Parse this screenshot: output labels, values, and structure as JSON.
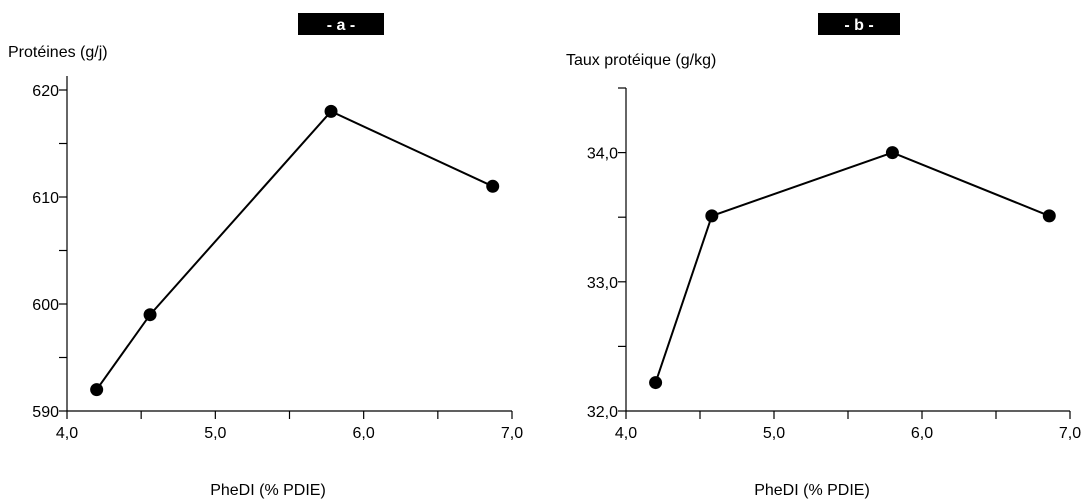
{
  "chart_data": [
    {
      "type": "line",
      "panel_label": "- a -",
      "ylabel": "Protéines (g/j)",
      "xlabel": "PheDI (% PDIE)",
      "xlim": [
        4.0,
        7.0
      ],
      "ylim": [
        590,
        620
      ],
      "x_ticks": [
        4.0,
        5.0,
        6.0,
        7.0
      ],
      "x_tick_labels": [
        "4,0",
        "5,0",
        "6,0",
        "7,0"
      ],
      "y_ticks": [
        590,
        600,
        610,
        620
      ],
      "y_tick_labels": [
        "590",
        "600",
        "610",
        "620"
      ],
      "y_minor_ticks": [
        595,
        605,
        615
      ],
      "grid": false,
      "x": [
        4.2,
        4.56,
        5.78,
        6.87
      ],
      "values": [
        592,
        599,
        618,
        611
      ],
      "line_color": "#000000",
      "marker_color": "#000000"
    },
    {
      "type": "line",
      "panel_label": "- b -",
      "ylabel": "Taux protéique  (g/kg)",
      "xlabel": "PheDI (% PDIE)",
      "xlim": [
        4.0,
        7.0
      ],
      "ylim": [
        32.0,
        34.5
      ],
      "x_ticks": [
        4.0,
        5.0,
        6.0,
        7.0
      ],
      "x_tick_labels": [
        "4,0",
        "5,0",
        "6,0",
        "7,0"
      ],
      "y_ticks": [
        32.0,
        33.0,
        34.0
      ],
      "y_tick_labels": [
        "32,0",
        "33,0",
        "34,0"
      ],
      "y_minor_ticks": [
        32.5,
        33.5,
        34.5
      ],
      "grid": false,
      "x": [
        4.2,
        4.58,
        5.8,
        6.86
      ],
      "values": [
        32.22,
        33.51,
        34.0,
        33.51
      ],
      "line_color": "#000000",
      "marker_color": "#000000"
    }
  ]
}
